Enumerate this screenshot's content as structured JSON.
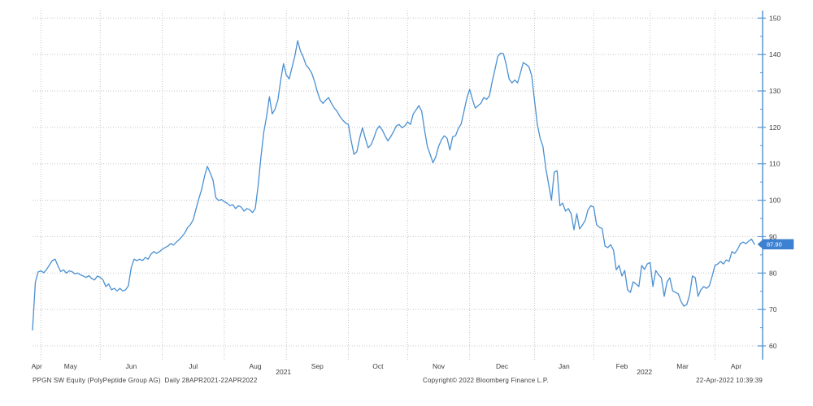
{
  "footer": {
    "left": "PPGN SW Equity (PolyPeptide Group AG)  Daily 28APR2021-22APR2022",
    "center": "Copyright© 2022 Bloomberg Finance L.P.",
    "right": "22-Apr-2022 10:39:39"
  },
  "chart_data": {
    "type": "line",
    "security": "PPGN SW Equity (PolyPeptide Group AG)",
    "period": "Daily 28APR2021-22APR2022",
    "grid": true,
    "legend_position": "none",
    "ylim": [
      60,
      150
    ],
    "y_ticks": [
      150,
      140,
      130,
      120,
      110,
      100,
      90,
      80,
      70,
      60
    ],
    "y_minor_ticks": [
      145,
      135,
      125,
      115,
      105,
      95,
      85,
      75,
      65
    ],
    "x_tick_labels": [
      "Apr",
      "May",
      "Jun",
      "Jul",
      "Aug",
      "Sep",
      "Oct",
      "Nov",
      "Dec",
      "Jan",
      "Feb",
      "Mar",
      "Apr"
    ],
    "month_start_indices": [
      0,
      3,
      24,
      46,
      68,
      90,
      112,
      133,
      155,
      178,
      199,
      219,
      242
    ],
    "year_labels": [
      "2021",
      "2022"
    ],
    "year_spans": [
      [
        0,
        178
      ],
      [
        178,
        257
      ]
    ],
    "total_points": 257,
    "last_price": "87.90",
    "last_price_value": 87.9,
    "colors": {
      "line": "#4a90d2",
      "axis": "#5b96d2",
      "grid": "#c4c4c4",
      "label": "#3d3d3d",
      "price_box": "#3d82d2",
      "price_text": "#ffffff"
    },
    "values": [
      64.4,
      77.5,
      80.3,
      80.6,
      80.1,
      81.0,
      82.2,
      83.4,
      83.8,
      82.0,
      80.4,
      80.9,
      80.0,
      80.6,
      80.4,
      79.8,
      80.0,
      79.5,
      79.2,
      78.8,
      79.3,
      78.5,
      78.1,
      79.2,
      78.8,
      78.1,
      76.3,
      77.0,
      75.4,
      75.8,
      75.1,
      75.8,
      75.1,
      75.4,
      76.5,
      81.5,
      83.8,
      83.4,
      83.8,
      83.4,
      84.3,
      83.8,
      85.2,
      85.9,
      85.4,
      85.9,
      86.5,
      87.0,
      87.4,
      88.1,
      87.7,
      88.5,
      89.2,
      90.0,
      91.0,
      92.5,
      93.3,
      94.7,
      97.7,
      100.5,
      103.0,
      106.6,
      109.3,
      107.5,
      105.5,
      100.7,
      99.9,
      100.2,
      99.6,
      99.2,
      98.5,
      98.8,
      97.7,
      98.5,
      98.1,
      97.0,
      97.7,
      97.4,
      96.6,
      97.7,
      104.0,
      111.9,
      118.6,
      123.0,
      128.4,
      123.7,
      125.0,
      127.5,
      133.0,
      137.5,
      134.4,
      133.3,
      136.4,
      139.5,
      143.8,
      141.0,
      139.3,
      137.1,
      136.2,
      134.9,
      132.6,
      129.8,
      127.5,
      126.6,
      127.5,
      128.2,
      126.6,
      125.3,
      124.4,
      123.0,
      122.0,
      121.2,
      120.8,
      116.3,
      112.6,
      113.3,
      117.0,
      119.9,
      117.0,
      114.4,
      115.2,
      117.0,
      119.3,
      120.4,
      119.3,
      117.7,
      116.3,
      117.4,
      118.8,
      120.4,
      120.8,
      119.9,
      120.4,
      121.5,
      120.8,
      123.7,
      124.8,
      126.0,
      124.4,
      119.3,
      114.8,
      112.6,
      110.3,
      111.9,
      114.8,
      116.6,
      117.7,
      117.0,
      113.8,
      117.4,
      117.7,
      119.7,
      121.0,
      124.4,
      128.0,
      130.4,
      127.7,
      125.3,
      126.0,
      126.6,
      128.2,
      127.7,
      128.6,
      132.6,
      136.0,
      139.5,
      140.4,
      140.2,
      137.1,
      133.3,
      132.2,
      133.0,
      132.2,
      134.9,
      137.8,
      137.3,
      136.7,
      134.2,
      127.5,
      120.8,
      117.0,
      114.8,
      108.8,
      104.4,
      100.0,
      107.7,
      108.1,
      98.5,
      99.2,
      97.0,
      97.7,
      96.3,
      91.9,
      96.3,
      92.1,
      93.2,
      94.5,
      97.4,
      98.5,
      98.1,
      93.3,
      92.6,
      92.2,
      87.4,
      87.0,
      87.8,
      86.3,
      80.9,
      82.1,
      79.2,
      80.7,
      75.4,
      74.7,
      77.6,
      77.0,
      76.3,
      82.1,
      81.0,
      82.5,
      82.9,
      76.3,
      80.7,
      79.5,
      78.7,
      73.6,
      77.6,
      78.7,
      75.1,
      74.7,
      74.3,
      72.1,
      70.9,
      71.4,
      74.0,
      79.2,
      78.7,
      73.6,
      75.4,
      76.3,
      75.8,
      76.5,
      79.2,
      82.1,
      82.5,
      83.2,
      82.5,
      83.6,
      83.2,
      85.9,
      85.4,
      86.5,
      88.1,
      88.5,
      88.1,
      88.8,
      89.3,
      87.9
    ]
  }
}
